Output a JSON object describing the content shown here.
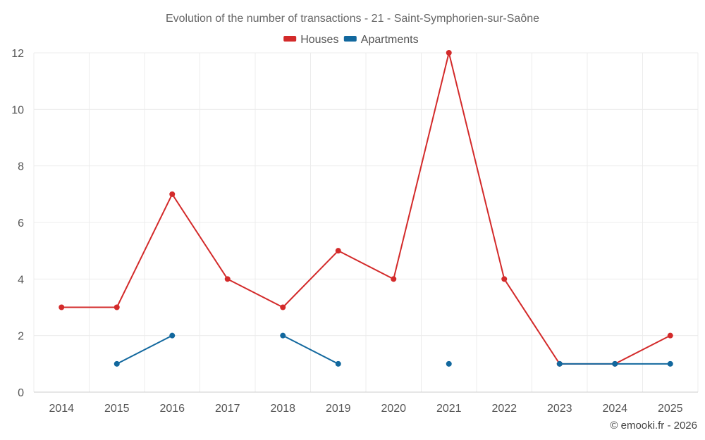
{
  "chart_data": {
    "type": "line",
    "title": "Evolution of the number of transactions - 21 - Saint-Symphorien-sur-Saône",
    "categories": [
      "2014",
      "2015",
      "2016",
      "2017",
      "2018",
      "2019",
      "2020",
      "2021",
      "2022",
      "2023",
      "2024",
      "2025"
    ],
    "ylim": [
      0,
      12
    ],
    "yticks": [
      0,
      2,
      4,
      6,
      8,
      10,
      12
    ],
    "grid": true,
    "legend_position": "top-center",
    "series": [
      {
        "name": "Houses",
        "color": "#d32a2a",
        "values": [
          3,
          3,
          7,
          4,
          3,
          5,
          4,
          12,
          4,
          1,
          1,
          2
        ]
      },
      {
        "name": "Apartments",
        "color": "#12689e",
        "values": [
          null,
          1,
          2,
          null,
          2,
          1,
          null,
          1,
          null,
          1,
          1,
          1
        ]
      }
    ],
    "credit": "© emooki.fr - 2026"
  }
}
